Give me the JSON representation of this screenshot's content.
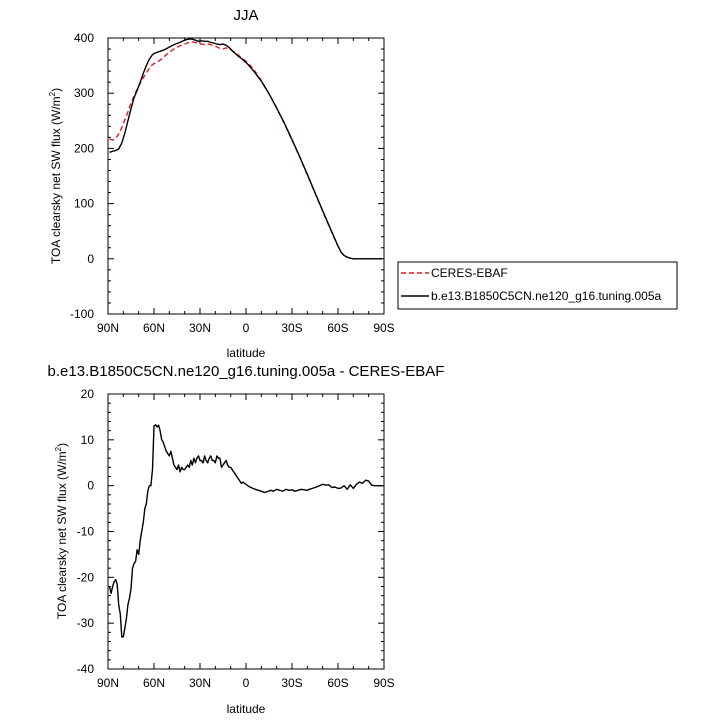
{
  "chart_data": [
    {
      "type": "line",
      "title": "JJA",
      "xlabel": "latitude",
      "ylabel_main": "TOA clearsky net SW flux (W/m",
      "ylabel_sup": "2",
      "ylabel_close": ")",
      "xlim": [
        90,
        -90
      ],
      "ylim": [
        -100,
        400
      ],
      "xticks": [
        90,
        60,
        30,
        0,
        -30,
        -60,
        -90
      ],
      "xtick_labels": [
        "90N",
        "60N",
        "30N",
        "0",
        "30S",
        "60S",
        "90S"
      ],
      "yticks": [
        -100,
        0,
        100,
        200,
        300,
        400
      ],
      "ytick_labels": [
        "-100",
        "0",
        "100",
        "200",
        "300",
        "400"
      ],
      "legend_position": "right",
      "series": [
        {
          "name": "CERES-EBAF",
          "color": "#e31a1c",
          "dash": "dashed",
          "x": [
            89,
            87,
            85,
            83,
            81,
            79,
            77,
            75,
            73,
            71,
            69,
            67,
            65,
            63,
            61,
            59,
            57,
            55,
            53,
            51,
            49,
            47,
            45,
            43,
            41,
            39,
            37,
            35,
            33,
            31,
            29,
            27,
            25,
            23,
            21,
            19,
            17,
            15,
            13,
            11,
            9,
            7,
            5,
            3,
            1,
            -1,
            -5,
            -10,
            -15,
            -20,
            -25,
            -30,
            -35,
            -40,
            -45,
            -50,
            -55,
            -60,
            -62,
            -64,
            -66,
            -68,
            -70,
            -75,
            -80,
            -85,
            -89
          ],
          "y": [
            217,
            215,
            218,
            226,
            238,
            252,
            266,
            282,
            295,
            307,
            318,
            328,
            337,
            345,
            352,
            355,
            358,
            362,
            367,
            372,
            376,
            380,
            383,
            386,
            388,
            390,
            392,
            393,
            392,
            390,
            389,
            388,
            389,
            388,
            386,
            384,
            381,
            380,
            382,
            381,
            377,
            373,
            369,
            364,
            360,
            356,
            343,
            323,
            299,
            273,
            245,
            215,
            184,
            152,
            119,
            86,
            54,
            23,
            12,
            6,
            3,
            1,
            0,
            0,
            0,
            0,
            0
          ]
        },
        {
          "name": "b.e13.B1850C5CN.ne120_g16.tuning.005a",
          "color": "#000000",
          "dash": "solid",
          "x": [
            89,
            87,
            85,
            83,
            81,
            79,
            77,
            75,
            73,
            71,
            69,
            67,
            65,
            63,
            61,
            59,
            57,
            55,
            53,
            51,
            49,
            47,
            45,
            43,
            41,
            39,
            37,
            35,
            33,
            31,
            29,
            27,
            25,
            23,
            21,
            19,
            17,
            15,
            13,
            11,
            9,
            7,
            5,
            3,
            1,
            -1,
            -5,
            -10,
            -15,
            -20,
            -25,
            -30,
            -35,
            -40,
            -45,
            -50,
            -55,
            -60,
            -62,
            -64,
            -66,
            -68,
            -70,
            -75,
            -80,
            -85,
            -89
          ],
          "y": [
            193,
            195,
            196,
            199,
            210,
            228,
            250,
            272,
            292,
            305,
            320,
            336,
            350,
            362,
            370,
            373,
            375,
            377,
            379,
            382,
            385,
            388,
            390,
            392,
            395,
            397,
            398,
            398,
            396,
            394,
            395,
            394,
            394,
            392,
            391,
            389,
            388,
            389,
            387,
            383,
            377,
            372,
            367,
            363,
            358,
            353,
            340,
            322,
            299,
            273,
            246,
            216,
            185,
            153,
            120,
            87,
            55,
            23,
            12,
            6,
            3,
            1,
            0,
            0,
            0,
            0,
            0
          ]
        }
      ]
    },
    {
      "type": "line",
      "title": "b.e13.B1850C5CN.ne120_g16.tuning.005a - CERES-EBAF",
      "xlabel": "latitude",
      "ylabel_main": "TOA clearsky net SW flux (W/m",
      "ylabel_sup": "2",
      "ylabel_close": ")",
      "xlim": [
        90,
        -90
      ],
      "ylim": [
        -40,
        20
      ],
      "xticks": [
        90,
        60,
        30,
        0,
        -30,
        -60,
        -90
      ],
      "xtick_labels": [
        "90N",
        "60N",
        "30N",
        "0",
        "30S",
        "60S",
        "90S"
      ],
      "yticks": [
        -40,
        -30,
        -20,
        -10,
        0,
        10,
        20
      ],
      "ytick_labels": [
        "-40",
        "-30",
        "-20",
        "-10",
        "0",
        "10",
        "20"
      ],
      "series": [
        {
          "color": "#000000",
          "dash": "solid",
          "x": [
            89,
            88,
            87,
            86,
            85,
            84,
            83,
            82,
            81,
            80,
            79,
            78,
            77,
            76,
            75,
            74,
            73,
            72,
            71,
            70,
            69,
            68,
            67,
            66,
            65,
            64,
            63,
            62,
            61,
            60,
            59,
            58,
            57,
            56,
            55,
            54,
            53,
            52,
            51,
            50,
            49,
            48,
            47,
            46,
            45,
            44,
            43,
            42,
            41,
            40,
            39,
            38,
            37,
            36,
            35,
            34,
            33,
            32,
            31,
            30,
            29,
            28,
            27,
            26,
            25,
            24,
            23,
            22,
            21,
            20,
            19,
            18,
            17,
            16,
            15,
            14,
            13,
            12,
            11,
            10,
            9,
            8,
            7,
            6,
            5,
            4,
            3,
            2,
            1,
            0,
            -2,
            -4,
            -6,
            -8,
            -10,
            -12,
            -14,
            -16,
            -18,
            -20,
            -22,
            -24,
            -26,
            -28,
            -30,
            -32,
            -34,
            -36,
            -38,
            -40,
            -42,
            -44,
            -46,
            -48,
            -50,
            -52,
            -54,
            -56,
            -58,
            -60,
            -62,
            -64,
            -66,
            -68,
            -70,
            -72,
            -74,
            -76,
            -78,
            -80,
            -82,
            -84,
            -86,
            -88,
            -90
          ],
          "y": [
            -22,
            -23.5,
            -22,
            -21,
            -20.5,
            -21.5,
            -26,
            -28,
            -33,
            -33,
            -31,
            -29,
            -26,
            -24.5,
            -22.5,
            -18,
            -17,
            -16.5,
            -14,
            -15,
            -12,
            -10,
            -8,
            -5,
            -4,
            -1,
            0,
            0,
            3.5,
            13,
            13.3,
            12.8,
            13.2,
            12,
            10,
            9.5,
            8.5,
            7.5,
            7,
            6.5,
            7.5,
            6,
            4.5,
            4,
            3.5,
            4.5,
            3,
            4,
            3.5,
            3.5,
            4,
            4.5,
            4,
            5.5,
            4.5,
            6,
            5,
            6,
            6.5,
            5.5,
            5.5,
            5,
            6.5,
            5.5,
            5,
            6,
            6.5,
            5.5,
            5.5,
            5,
            6.5,
            6,
            6,
            4,
            4.5,
            5,
            5.5,
            4.5,
            4,
            4,
            3.5,
            3,
            2.5,
            2,
            1.5,
            1,
            0.5,
            0.8,
            0.5,
            0.3,
            -0.2,
            -0.5,
            -0.8,
            -1,
            -1.2,
            -1.5,
            -1.3,
            -1,
            -1.2,
            -0.8,
            -1,
            -1.2,
            -0.8,
            -1,
            -0.9,
            -1.2,
            -1,
            -0.8,
            -0.9,
            -1,
            -0.7,
            -0.5,
            -0.3,
            0,
            0.3,
            0.1,
            0.2,
            -0.4,
            -0.3,
            -0.6,
            -0.5,
            0,
            -0.8,
            0.2,
            -0.6,
            0.3,
            0.8,
            0.5,
            1.2,
            1.0,
            0.1,
            0,
            0,
            0,
            0
          ]
        }
      ]
    }
  ]
}
